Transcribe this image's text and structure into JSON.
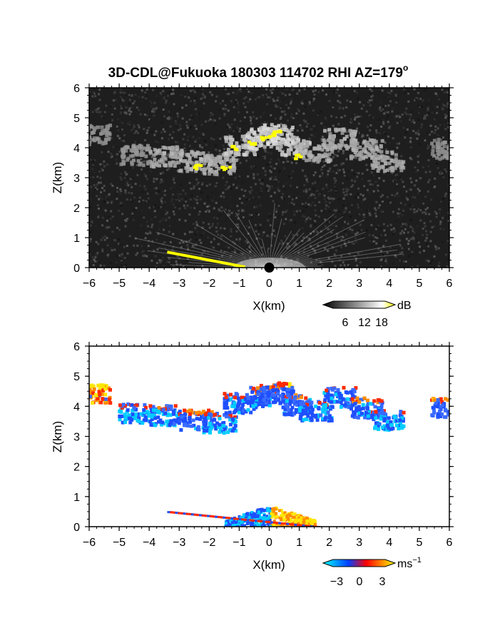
{
  "title": "3D-CDL@Fukuoka 180303 114702 RHI AZ=179",
  "title_superscript": "o",
  "chart_data": [
    {
      "type": "heatmap",
      "name": "reflectivity-panel",
      "xlabel": "X(km)",
      "ylabel": "Z(km)",
      "xlim": [
        -6,
        6
      ],
      "ylim": [
        0,
        6
      ],
      "xticks": [
        "−6",
        "−5",
        "−4",
        "−3",
        "−2",
        "−1",
        "0",
        "1",
        "2",
        "3",
        "4",
        "5",
        "6"
      ],
      "yticks": [
        "0",
        "1",
        "2",
        "3",
        "4",
        "5",
        "6"
      ],
      "background": "#1e1e1e",
      "colorbar": {
        "unit": "dB",
        "ticks": [
          "6",
          "12",
          "18"
        ],
        "range": [
          0,
          21
        ],
        "colors": [
          "#000000",
          "#ffffff",
          "#ffff00"
        ]
      },
      "cloud_layer": [
        {
          "x": -4.5,
          "z": 3.8,
          "level": 0.35
        },
        {
          "x": -3.5,
          "z": 3.75,
          "level": 0.55
        },
        {
          "x": -2.5,
          "z": 3.6,
          "level": 0.6
        },
        {
          "x": -1.7,
          "z": 3.5,
          "level": 0.55
        },
        {
          "x": -1.0,
          "z": 4.15,
          "level": 0.75
        },
        {
          "x": -0.3,
          "z": 4.35,
          "level": 0.85
        },
        {
          "x": 0.2,
          "z": 4.5,
          "level": 0.9
        },
        {
          "x": 0.8,
          "z": 4.1,
          "level": 0.75
        },
        {
          "x": 1.5,
          "z": 3.9,
          "level": 0.55
        },
        {
          "x": 2.3,
          "z": 4.35,
          "level": 0.55
        },
        {
          "x": 3.2,
          "z": 4.0,
          "level": 0.55
        },
        {
          "x": 3.9,
          "z": 3.6,
          "level": 0.5
        },
        {
          "x": 5.9,
          "z": 4.0,
          "level": 0.3
        },
        {
          "x": -5.9,
          "z": 4.5,
          "level": 0.3
        }
      ],
      "high_echo": [
        {
          "x": -1.2,
          "z": 4.05
        },
        {
          "x": -0.6,
          "z": 4.2
        },
        {
          "x": -0.2,
          "z": 4.35
        },
        {
          "x": 0.1,
          "z": 4.45
        },
        {
          "x": 0.25,
          "z": 4.6
        },
        {
          "x": 0.85,
          "z": 3.75
        },
        {
          "x": -1.5,
          "z": 3.35
        },
        {
          "x": -2.4,
          "z": 3.4
        }
      ],
      "ground_clutter_line": {
        "from": [
          -3.4,
          0.52
        ],
        "to": [
          -0.8,
          0.02
        ]
      }
    },
    {
      "type": "heatmap",
      "name": "doppler-velocity-panel",
      "xlabel": "X(km)",
      "ylabel": "Z(km)",
      "xlim": [
        -6,
        6
      ],
      "ylim": [
        0,
        6
      ],
      "xticks": [
        "−6",
        "−5",
        "−4",
        "−3",
        "−2",
        "−1",
        "0",
        "1",
        "2",
        "3",
        "4",
        "5",
        "6"
      ],
      "yticks": [
        "0",
        "1",
        "2",
        "3",
        "4",
        "5",
        "6"
      ],
      "background": "#ffffff",
      "colorbar": {
        "unit": "ms",
        "unit_superscript": "−1",
        "ticks": [
          "−3",
          "0",
          "3"
        ],
        "range": [
          -4,
          4
        ],
        "colors": [
          "#00ffff",
          "#0040ff",
          "#ff0000",
          "#ffff00"
        ]
      },
      "cloud_layer": [
        {
          "x": -4.5,
          "z": 3.8,
          "velocity": -2.5
        },
        {
          "x": -3.5,
          "z": 3.75,
          "velocity": -2.0
        },
        {
          "x": -2.5,
          "z": 3.6,
          "velocity": -1.5
        },
        {
          "x": -1.7,
          "z": 3.5,
          "velocity": -2.5
        },
        {
          "x": -1.0,
          "z": 4.15,
          "velocity": -2.0
        },
        {
          "x": -0.3,
          "z": 4.35,
          "velocity": -1.5
        },
        {
          "x": 0.2,
          "z": 4.5,
          "velocity": -1.0
        },
        {
          "x": 0.8,
          "z": 4.1,
          "velocity": -1.5
        },
        {
          "x": 1.5,
          "z": 3.9,
          "velocity": -2.0
        },
        {
          "x": 2.3,
          "z": 4.35,
          "velocity": -2.0
        },
        {
          "x": 3.2,
          "z": 4.0,
          "velocity": -1.5
        },
        {
          "x": 3.9,
          "z": 3.6,
          "velocity": -2.5
        },
        {
          "x": 5.9,
          "z": 4.0,
          "velocity": -1.0
        },
        {
          "x": -5.9,
          "z": 4.5,
          "velocity": 1.5
        }
      ],
      "low_layer": {
        "x_range": [
          -1.5,
          1.5
        ],
        "z_range": [
          0.0,
          0.75
        ]
      },
      "ground_clutter_line": {
        "from": [
          -3.4,
          0.52
        ],
        "to": [
          1.8,
          0.0
        ]
      }
    }
  ]
}
